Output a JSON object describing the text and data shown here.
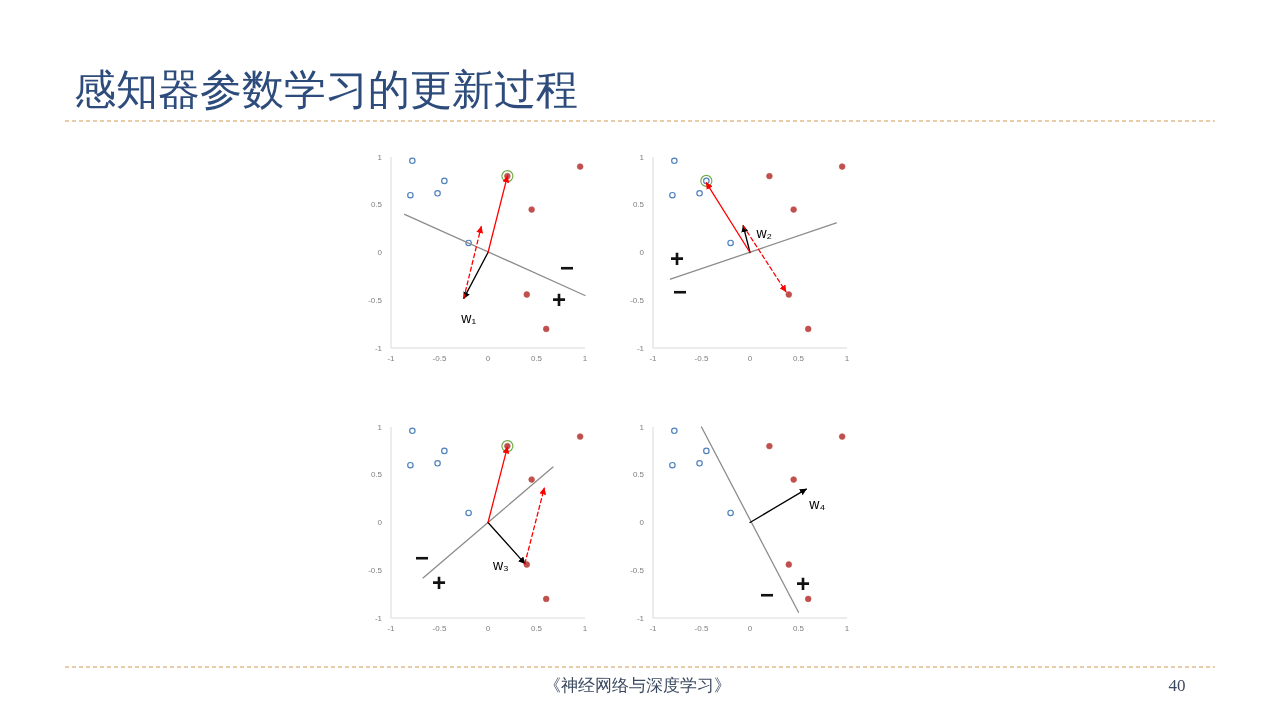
{
  "chart_data": [
    {
      "type": "scatter",
      "title": "感知器参数学习的更新过程",
      "xlim": [
        -1,
        1
      ],
      "ylim": [
        -1,
        1
      ],
      "xticks": [
        -1,
        -0.5,
        0,
        0.5,
        1
      ],
      "yticks": [
        -1,
        -0.5,
        0,
        0.5,
        1
      ],
      "series": [
        {
          "marker": "circle",
          "color": "#4f81bd",
          "x": [
            -0.78,
            -0.8,
            -0.52,
            -0.45,
            -0.2
          ],
          "values": [
            0.96,
            0.6,
            0.62,
            0.75,
            0.1
          ]
        },
        {
          "marker": "circle",
          "color": "#c0504d",
          "x": [
            0.2,
            0.45,
            0.95,
            0.4,
            0.6
          ],
          "values": [
            0.8,
            0.45,
            0.9,
            -0.44,
            -0.8
          ]
        },
        {
          "marker": "circle",
          "color": "#70ad47",
          "x": [
            0.2
          ],
          "values": [
            0.8
          ]
        },
        {
          "type": "line",
          "line_style": "solid",
          "color": "#8c8c8c",
          "x": [
            -0.86,
            1.0
          ],
          "values": [
            0.4,
            -0.45
          ]
        },
        {
          "type": "line",
          "name": "w₁",
          "line_style": "solid",
          "color": "#000000",
          "x": [
            0,
            -0.25
          ],
          "values": [
            0,
            -0.48
          ]
        },
        {
          "type": "line",
          "line_style": "solid",
          "color": "#ff0000",
          "x": [
            0,
            0.2
          ],
          "values": [
            0,
            0.8
          ]
        },
        {
          "type": "line",
          "line_style": "dashed",
          "color": "#ff0000",
          "x": [
            -0.25,
            -0.07
          ],
          "values": [
            -0.48,
            0.27
          ]
        }
      ],
      "annotations": [
        "−",
        "+"
      ]
    },
    {
      "type": "scatter",
      "xlim": [
        -1,
        1
      ],
      "ylim": [
        -1,
        1
      ],
      "xticks": [
        -1,
        -0.5,
        0,
        0.5,
        1
      ],
      "yticks": [
        -1,
        -0.5,
        0,
        0.5,
        1
      ],
      "series": [
        {
          "marker": "circle",
          "color": "#4f81bd",
          "x": [
            -0.78,
            -0.8,
            -0.52,
            -0.45,
            -0.2
          ],
          "values": [
            0.96,
            0.6,
            0.62,
            0.75,
            0.1
          ]
        },
        {
          "marker": "circle",
          "color": "#c0504d",
          "x": [
            0.2,
            0.45,
            0.95,
            0.4,
            0.6
          ],
          "values": [
            0.8,
            0.45,
            0.9,
            -0.44,
            -0.8
          ]
        },
        {
          "marker": "circle",
          "color": "#70ad47",
          "x": [
            -0.45
          ],
          "values": [
            0.75
          ]
        },
        {
          "type": "line",
          "line_style": "solid",
          "color": "#8c8c8c",
          "x": [
            -0.82,
            0.89
          ],
          "values": [
            -0.28,
            0.31
          ]
        },
        {
          "type": "line",
          "name": "w₂",
          "line_style": "solid",
          "color": "#000000",
          "x": [
            0,
            -0.07
          ],
          "values": [
            0,
            0.28
          ]
        },
        {
          "type": "line",
          "line_style": "solid",
          "color": "#ff0000",
          "x": [
            0,
            -0.45
          ],
          "values": [
            0,
            0.73
          ]
        },
        {
          "type": "line",
          "line_style": "dashed",
          "color": "#ff0000",
          "x": [
            -0.07,
            0.37
          ],
          "values": [
            0.28,
            -0.41
          ]
        }
      ],
      "annotations": [
        "+",
        "−"
      ]
    },
    {
      "type": "scatter",
      "xlim": [
        -1,
        1
      ],
      "ylim": [
        -1,
        1
      ],
      "xticks": [
        -1,
        -0.5,
        0,
        0.5,
        1
      ],
      "yticks": [
        -1,
        -0.5,
        0,
        0.5,
        1
      ],
      "series": [
        {
          "marker": "circle",
          "color": "#4f81bd",
          "x": [
            -0.78,
            -0.8,
            -0.52,
            -0.45,
            -0.2
          ],
          "values": [
            0.96,
            0.6,
            0.62,
            0.75,
            0.1
          ]
        },
        {
          "marker": "circle",
          "color": "#c0504d",
          "x": [
            0.2,
            0.45,
            0.95,
            0.4,
            0.6
          ],
          "values": [
            0.8,
            0.45,
            0.9,
            -0.44,
            -0.8
          ]
        },
        {
          "marker": "circle",
          "color": "#70ad47",
          "x": [
            0.2
          ],
          "values": [
            0.8
          ]
        },
        {
          "type": "line",
          "line_style": "solid",
          "color": "#8c8c8c",
          "x": [
            -0.67,
            0.67
          ],
          "values": [
            -0.58,
            0.58
          ]
        },
        {
          "type": "line",
          "name": "w₃",
          "line_style": "solid",
          "color": "#000000",
          "x": [
            0,
            0.38
          ],
          "values": [
            0,
            -0.43
          ]
        },
        {
          "type": "line",
          "line_style": "solid",
          "color": "#ff0000",
          "x": [
            0,
            0.2
          ],
          "values": [
            0,
            0.79
          ]
        },
        {
          "type": "line",
          "line_style": "dashed",
          "color": "#ff0000",
          "x": [
            0.38,
            0.58
          ],
          "values": [
            -0.43,
            0.36
          ]
        }
      ],
      "annotations": [
        "−",
        "+"
      ]
    },
    {
      "type": "scatter",
      "xlim": [
        -1,
        1
      ],
      "ylim": [
        -1,
        1
      ],
      "xticks": [
        -1,
        -0.5,
        0,
        0.5,
        1
      ],
      "yticks": [
        -1,
        -0.5,
        0,
        0.5,
        1
      ],
      "series": [
        {
          "marker": "circle",
          "color": "#4f81bd",
          "x": [
            -0.78,
            -0.8,
            -0.52,
            -0.45,
            -0.2
          ],
          "values": [
            0.96,
            0.6,
            0.62,
            0.75,
            0.1
          ]
        },
        {
          "marker": "circle",
          "color": "#c0504d",
          "x": [
            0.2,
            0.45,
            0.95,
            0.4,
            0.6
          ],
          "values": [
            0.8,
            0.45,
            0.9,
            -0.44,
            -0.8
          ]
        },
        {
          "type": "line",
          "line_style": "solid",
          "color": "#8c8c8c",
          "x": [
            -0.5,
            0.5
          ],
          "values": [
            1.0,
            -0.94
          ]
        },
        {
          "type": "line",
          "name": "w₄",
          "line_style": "solid",
          "color": "#000000",
          "x": [
            0,
            0.58
          ],
          "values": [
            0,
            0.35
          ]
        }
      ],
      "annotations": [
        "−",
        "+",
        "《神经网络与深度学习》",
        "40"
      ]
    }
  ]
}
